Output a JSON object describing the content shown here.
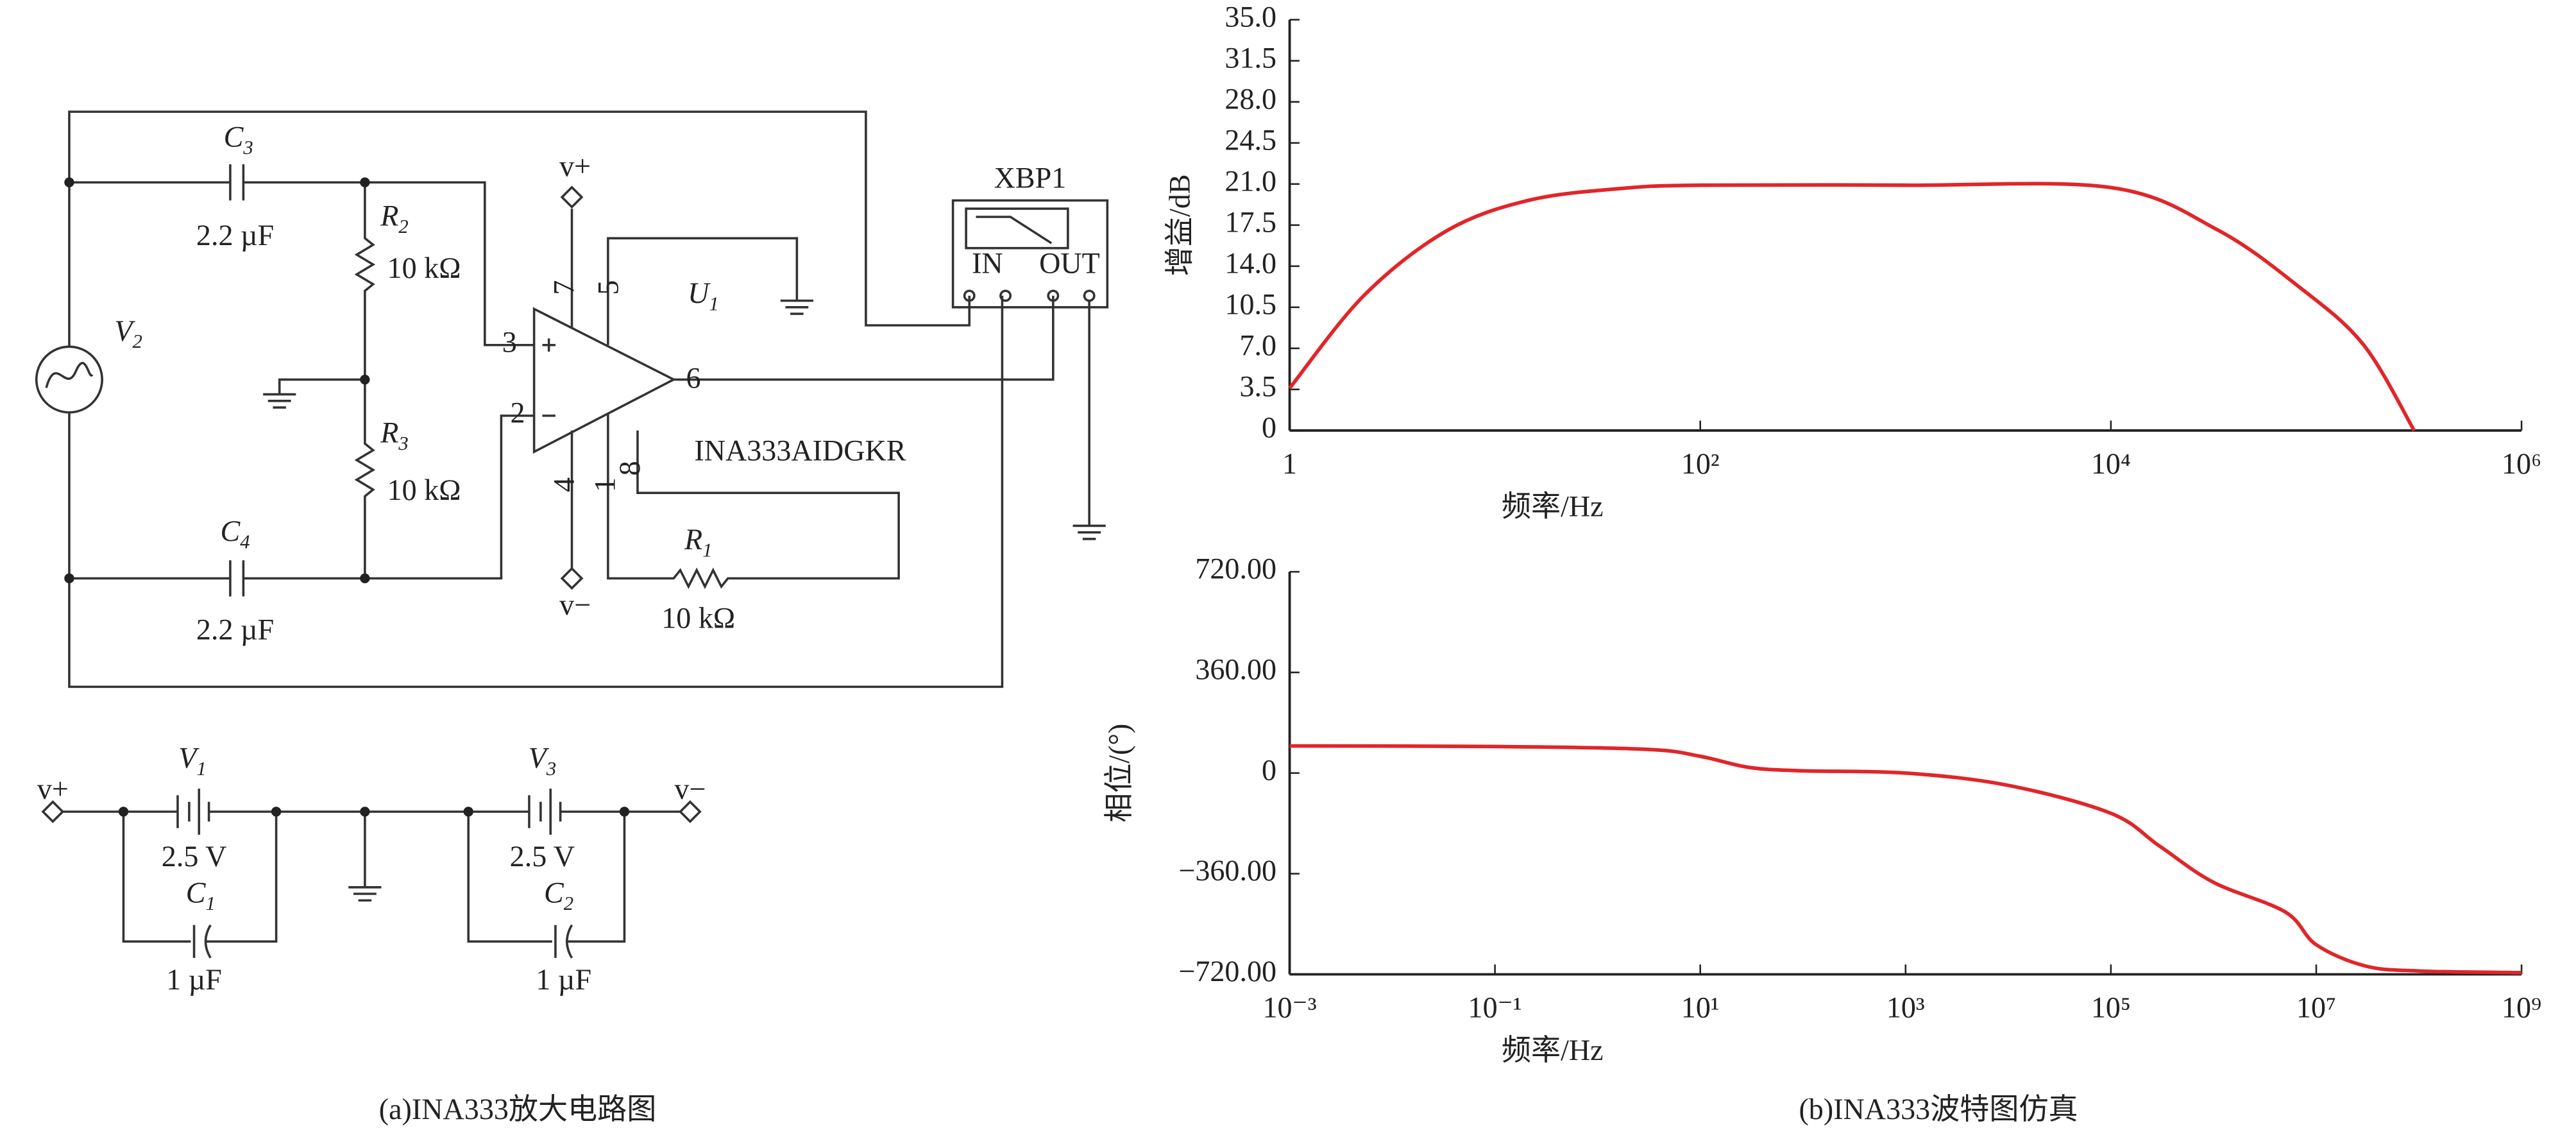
{
  "diagram": {
    "components": [
      {
        "name": "C",
        "sub": "3",
        "value": "2.2 µF"
      },
      {
        "name": "R",
        "sub": "2",
        "value": "10 kΩ"
      },
      {
        "name": "V",
        "sub": "2"
      },
      {
        "name": "R",
        "sub": "3",
        "value": "10 kΩ"
      },
      {
        "name": "C",
        "sub": "4",
        "value": "2.2 µF"
      },
      {
        "name": "U",
        "sub": "1",
        "value": "INA333AIDGKR"
      },
      {
        "name": "R",
        "sub": "1",
        "value": "10 kΩ"
      },
      {
        "name": "V",
        "sub": "1",
        "value": "2.5 V"
      },
      {
        "name": "C",
        "sub": "1",
        "value": "1 µF"
      },
      {
        "name": "V",
        "sub": "3",
        "value": "2.5 V"
      },
      {
        "name": "C",
        "sub": "2",
        "value": "1 µF"
      }
    ],
    "supply_pos": "v+",
    "supply_neg": "v−",
    "pins": [
      "3",
      "2",
      "7",
      "5",
      "6",
      "8",
      "4",
      "1"
    ],
    "instrument": {
      "name": "XBP1",
      "in": "IN",
      "out": "OUT"
    },
    "caption_a": "(a)INA333放大电路图",
    "caption_b": "(b)INA333波特图仿真"
  },
  "chart_data": [
    {
      "type": "line",
      "xlabel": "频率/Hz",
      "ylabel": "增益/dB",
      "xscale": "log",
      "xlim": [
        1,
        1000000
      ],
      "xticks": [
        1,
        {
          "value": 100,
          "label": "10²"
        },
        {
          "value": 10000,
          "label": "10⁴"
        },
        {
          "value": 1000000,
          "label": "10⁶"
        }
      ],
      "ylim": [
        0,
        35
      ],
      "yticks": [
        0,
        3.5,
        {
          "value": 7,
          "label": "7.0"
        },
        10.5,
        {
          "value": 14,
          "label": "14.0"
        },
        17.5,
        {
          "value": 21,
          "label": "21.0"
        },
        24.5,
        {
          "value": 28,
          "label": "28.0"
        },
        31.5,
        {
          "value": 35,
          "label": "35.0"
        }
      ],
      "x": [
        1,
        2.3,
        5.8,
        14.5,
        40,
        100,
        1000,
        10000,
        33000,
        83000,
        170000,
        300000
      ],
      "series": [
        {
          "color": "#e0262a",
          "values": [
            3.6,
            11.5,
            17,
            19.6,
            20.6,
            20.9,
            20.9,
            20.7,
            17.1,
            12.2,
            7.3,
            0
          ]
        }
      ]
    },
    {
      "type": "line",
      "xlabel": "频率/Hz",
      "ylabel": "相位/(°)",
      "xscale": "log",
      "xlim": [
        0.001,
        1000000000
      ],
      "xticks": [
        {
          "value": 0.001,
          "label": "10⁻³"
        },
        {
          "value": 0.1,
          "label": "10⁻¹"
        },
        {
          "value": 10,
          "label": "10¹"
        },
        {
          "value": 1000,
          "label": "10³"
        },
        {
          "value": 100000,
          "label": "10⁵"
        },
        {
          "value": 10000000,
          "label": "10⁷"
        },
        {
          "value": 1000000000,
          "label": "10⁹"
        }
      ],
      "ylim": [
        -720,
        720
      ],
      "yticks": [
        {
          "value": 720,
          "label": "720.00"
        },
        {
          "value": 360,
          "label": "360.00"
        },
        0,
        {
          "value": -360,
          "label": "−360.00"
        },
        {
          "value": -720,
          "label": "−720.00"
        }
      ],
      "x": [
        0.001,
        0.1,
        3,
        10,
        30,
        100,
        1000,
        10000,
        100000,
        300000,
        1000000,
        5000000,
        10000000,
        30000000,
        100000000,
        1000000000
      ],
      "series": [
        {
          "color": "#e0262a",
          "values": [
            97,
            95,
            85,
            60,
            20,
            8,
            0,
            -44,
            -144,
            -262,
            -391,
            -497,
            -614,
            -690,
            -708,
            -714
          ]
        }
      ]
    }
  ]
}
